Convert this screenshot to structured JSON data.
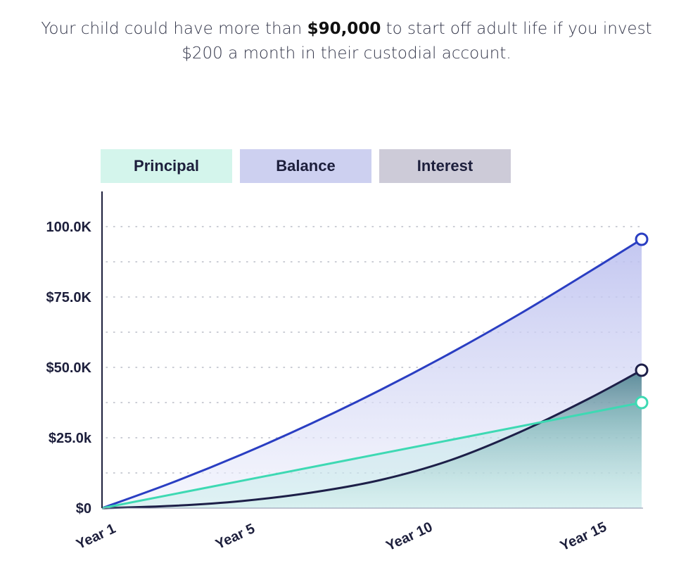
{
  "headline": {
    "line1_pre": "Your child could have more than ",
    "line1_bold": "$90,000",
    "line1_post": " to start off adult life if you invest",
    "line2": "$200 a month in their custodial account."
  },
  "legend": [
    {
      "label": "Principal",
      "color": "#d4f5ec"
    },
    {
      "label": "Balance",
      "color": "#cdd0f0"
    },
    {
      "label": "Interest",
      "color": "#cdcbd8"
    }
  ],
  "chart_data": {
    "type": "area",
    "y_tick_labels": [
      "$0",
      "$25.0k",
      "$50.0K",
      "$75.0K",
      "100.0K"
    ],
    "y_ticks": [
      0,
      25000,
      50000,
      75000,
      100000
    ],
    "ylim": [
      0,
      100000
    ],
    "x_tick_labels": [
      "Year 1",
      "Year 5",
      "Year 10",
      "Year 15"
    ],
    "x_ticks": [
      1,
      5,
      10,
      15
    ],
    "xlim": [
      1,
      16.5
    ],
    "grid": true,
    "legend_position": "top",
    "series": [
      {
        "name": "Balance",
        "color": "#2a3ec2",
        "x": [
          1,
          3,
          5,
          7,
          9,
          11,
          13,
          15,
          16.5
        ],
        "values": [
          0,
          9000,
          19000,
          30000,
          42000,
          55000,
          69000,
          84000,
          95500
        ]
      },
      {
        "name": "Interest",
        "color": "#1d1f48",
        "x": [
          1,
          3,
          5,
          7,
          9,
          11,
          13,
          15,
          16.5
        ],
        "values": [
          0,
          800,
          2500,
          5500,
          10000,
          17000,
          27000,
          39000,
          49000
        ]
      },
      {
        "name": "Principal",
        "color": "#3ed9b3",
        "x": [
          1,
          16.5
        ],
        "values": [
          0,
          37500
        ]
      }
    ]
  }
}
